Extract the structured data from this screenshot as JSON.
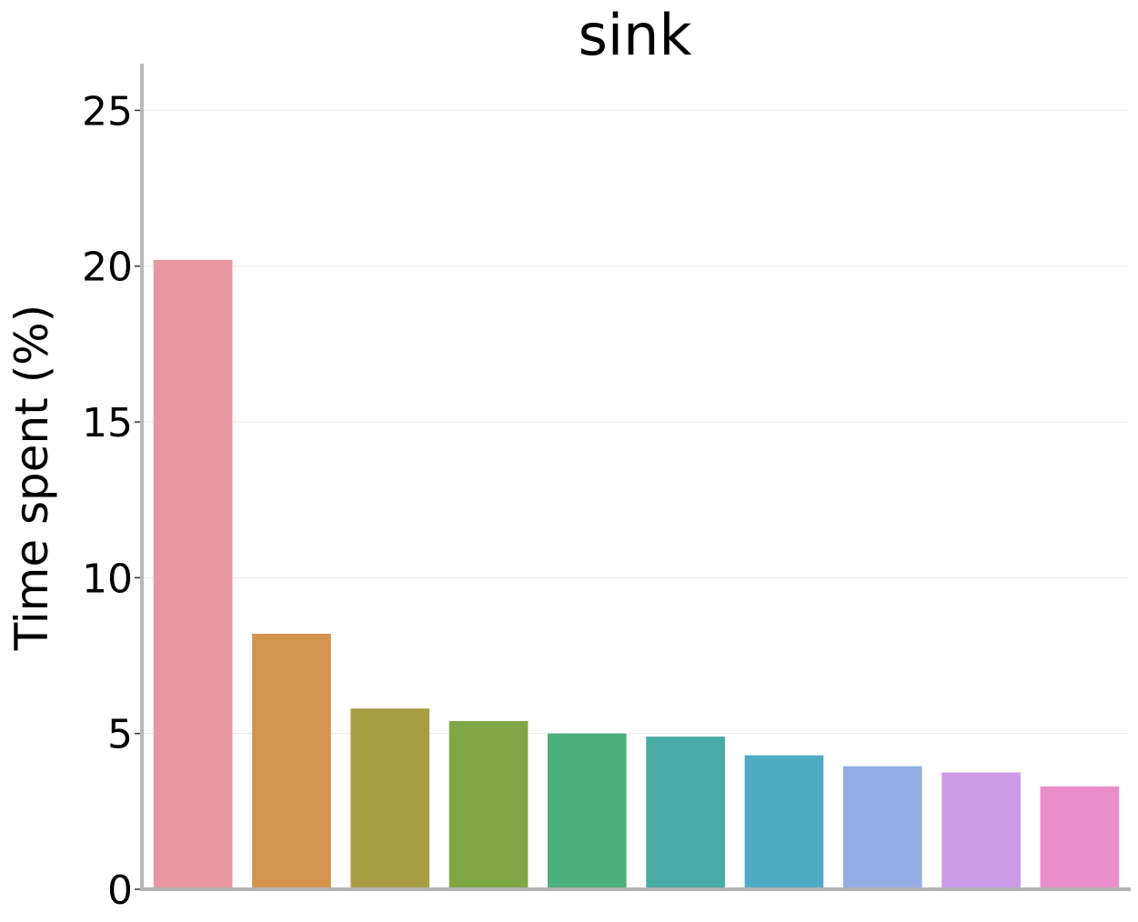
{
  "chart_data": {
    "type": "bar",
    "title": "sink",
    "xlabel": "",
    "ylabel": "Time spent (%)",
    "ylim": [
      0,
      26.5
    ],
    "yticks": [
      0,
      5,
      10,
      15,
      20,
      25
    ],
    "grid": "horizontal",
    "values": [
      20.2,
      8.2,
      5.8,
      5.4,
      5.0,
      4.9,
      4.3,
      3.95,
      3.75,
      3.3
    ],
    "colors": [
      "#ea96a0",
      "#d5944d",
      "#a99d43",
      "#7fa845",
      "#4caf7e",
      "#4aaaa6",
      "#4fabc4",
      "#93aee5",
      "#cb9be6",
      "#ea8ec9"
    ]
  }
}
